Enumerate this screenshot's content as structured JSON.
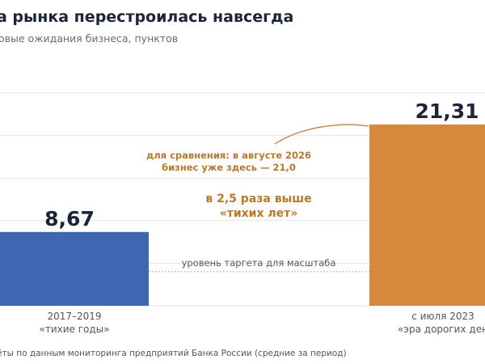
{
  "title": "а рынка перестроилась навсегда",
  "subtitle": "овые ожидания бизнеса, пунктов",
  "source": "ёты по данным мониторинга предприятий Банка России (средние за период)",
  "colors": {
    "bar_1": "#3f67b1",
    "bar_2": "#d6893a",
    "annotation": "#b8792a",
    "value_text": "#1c2537",
    "grid": "#e5e5e5",
    "target_line": "#9a9a9a"
  },
  "chart_data": {
    "type": "bar",
    "categories": [
      [
        "2017–2019",
        "«тихие годы»"
      ],
      [
        "с июля 2023",
        "«эра дорогих ден"
      ]
    ],
    "values": [
      8.67,
      21.31
    ],
    "value_labels": [
      "8,67",
      "21,31"
    ],
    "ylim": [
      0,
      25
    ],
    "grid": true,
    "reference_line": {
      "value": 4,
      "label": "уровень таргета для масштаба"
    },
    "annotations": {
      "comparison": [
        "для сравнения: в августе 2026",
        "бизнес уже здесь — 21,0"
      ],
      "ratio": [
        "в 2,5 раза выше",
        "«тихих лет»"
      ]
    }
  }
}
